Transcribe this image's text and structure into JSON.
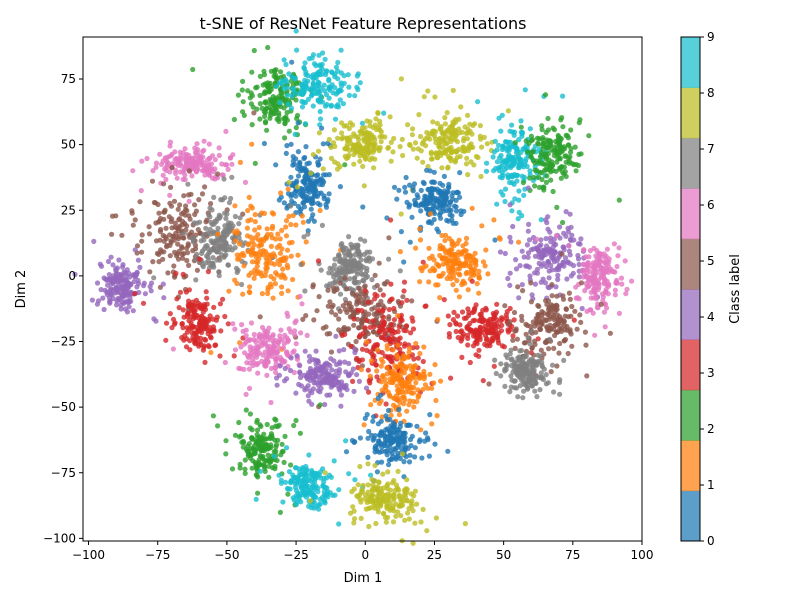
{
  "chart_data": {
    "type": "scatter",
    "title": "t-SNE of ResNet Feature Representations",
    "xlabel": "Dim 1",
    "ylabel": "Dim 2",
    "xlim": [
      -102,
      100
    ],
    "ylim": [
      -101,
      91
    ],
    "x_ticks": [
      -100,
      -75,
      -50,
      -25,
      0,
      25,
      50,
      75,
      100
    ],
    "y_ticks": [
      -100,
      -75,
      -50,
      -25,
      0,
      25,
      50,
      75
    ],
    "grid": false,
    "colorbar": {
      "label": "Class label",
      "min": 0,
      "max": 9,
      "ticks": [
        0,
        1,
        2,
        3,
        4,
        5,
        6,
        7,
        8,
        9
      ],
      "placement": "right"
    },
    "classes": [
      {
        "label": 0,
        "color": "#1f77b4"
      },
      {
        "label": 1,
        "color": "#ff7f0e"
      },
      {
        "label": 2,
        "color": "#2ca02c"
      },
      {
        "label": 3,
        "color": "#d62728"
      },
      {
        "label": 4,
        "color": "#9467bd"
      },
      {
        "label": 5,
        "color": "#8c564b"
      },
      {
        "label": 6,
        "color": "#e377c2"
      },
      {
        "label": 7,
        "color": "#7f7f7f"
      },
      {
        "label": 8,
        "color": "#bcbd22"
      },
      {
        "label": 9,
        "color": "#17becf"
      }
    ],
    "clusters": [
      {
        "class": 2,
        "cx": -32,
        "cy": 68,
        "sx": 5,
        "sy": 6
      },
      {
        "class": 9,
        "cx": -17,
        "cy": 72,
        "sx": 6,
        "sy": 5
      },
      {
        "class": 0,
        "cx": -21,
        "cy": 35,
        "sx": 4,
        "sy": 7
      },
      {
        "class": 8,
        "cx": -2,
        "cy": 50,
        "sx": 5,
        "sy": 4
      },
      {
        "class": 6,
        "cx": -62,
        "cy": 43,
        "sx": 6,
        "sy": 3
      },
      {
        "class": 5,
        "cx": -68,
        "cy": 16,
        "sx": 7,
        "sy": 9
      },
      {
        "class": 7,
        "cx": -53,
        "cy": 14,
        "sx": 4,
        "sy": 6
      },
      {
        "class": 4,
        "cx": -88,
        "cy": -4,
        "sx": 4,
        "sy": 4
      },
      {
        "class": 3,
        "cx": -60,
        "cy": -18,
        "sx": 4,
        "sy": 5
      },
      {
        "class": 1,
        "cx": -37,
        "cy": 10,
        "sx": 6,
        "sy": 9
      },
      {
        "class": 8,
        "cx": 30,
        "cy": 52,
        "sx": 6,
        "sy": 5
      },
      {
        "class": 9,
        "cx": 54,
        "cy": 43,
        "sx": 4,
        "sy": 7
      },
      {
        "class": 2,
        "cx": 68,
        "cy": 46,
        "sx": 5,
        "sy": 6
      },
      {
        "class": 0,
        "cx": 25,
        "cy": 28,
        "sx": 5,
        "sy": 4
      },
      {
        "class": 1,
        "cx": 32,
        "cy": 5,
        "sx": 5,
        "sy": 5
      },
      {
        "class": 4,
        "cx": 67,
        "cy": 8,
        "sx": 6,
        "sy": 5
      },
      {
        "class": 6,
        "cx": 84,
        "cy": 0,
        "sx": 4,
        "sy": 6
      },
      {
        "class": 3,
        "cx": 42,
        "cy": -20,
        "sx": 5,
        "sy": 4
      },
      {
        "class": 5,
        "cx": 66,
        "cy": -18,
        "sx": 5,
        "sy": 6
      },
      {
        "class": 7,
        "cx": 58,
        "cy": -36,
        "sx": 4,
        "sy": 4
      },
      {
        "class": 7,
        "cx": -5,
        "cy": 3,
        "sx": 4,
        "sy": 5
      },
      {
        "class": 5,
        "cx": 0,
        "cy": -15,
        "sx": 7,
        "sy": 6
      },
      {
        "class": 6,
        "cx": -35,
        "cy": -28,
        "sx": 5,
        "sy": 5
      },
      {
        "class": 4,
        "cx": -15,
        "cy": -38,
        "sx": 6,
        "sy": 4
      },
      {
        "class": 3,
        "cx": 8,
        "cy": -25,
        "sx": 6,
        "sy": 8
      },
      {
        "class": 1,
        "cx": 14,
        "cy": -40,
        "sx": 5,
        "sy": 6
      },
      {
        "class": 0,
        "cx": 10,
        "cy": -62,
        "sx": 5,
        "sy": 4
      },
      {
        "class": 2,
        "cx": -37,
        "cy": -66,
        "sx": 4,
        "sy": 5
      },
      {
        "class": 9,
        "cx": -20,
        "cy": -80,
        "sx": 5,
        "sy": 4
      },
      {
        "class": 8,
        "cx": 8,
        "cy": -85,
        "sx": 6,
        "sy": 4
      }
    ]
  }
}
